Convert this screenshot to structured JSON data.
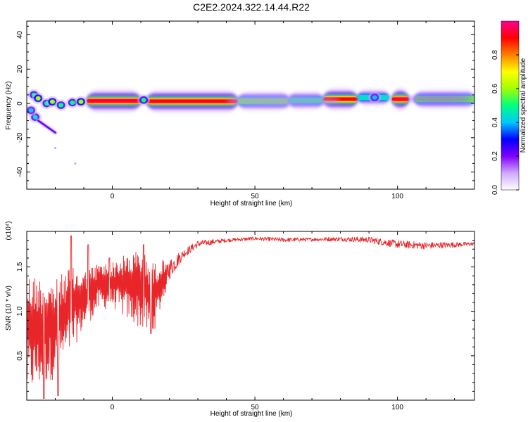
{
  "title": "C2E2.2024.322.14.44.R22",
  "chart_data": [
    {
      "type": "heatmap",
      "xlabel": "Height of straight line (km)",
      "ylabel": "Frequency (Hz)",
      "xlim": [
        -30,
        127
      ],
      "ylim": [
        -50,
        48
      ],
      "x_ticks": [
        0,
        50,
        100
      ],
      "y_ticks": [
        -40,
        -20,
        0,
        20,
        40
      ],
      "colorbar": {
        "label": "Normalized spectral amplitude",
        "range": [
          0,
          1
        ],
        "ticks": [
          "0.0",
          "0.2",
          "0.4",
          "0.6",
          "0.8"
        ],
        "colors": [
          "#ffffff",
          "#cfa8ff",
          "#8000ff",
          "#0000ff",
          "#00c8ff",
          "#00ff80",
          "#a0ff00",
          "#ffff00",
          "#ff8000",
          "#ff0000",
          "#ff0090"
        ]
      },
      "ridge": {
        "segments": [
          {
            "x": [
              -9,
              10
            ],
            "freq": 1.5,
            "amplitude": 0.95
          },
          {
            "x": [
              12,
              44
            ],
            "freq": 1.3,
            "amplitude": 0.93
          },
          {
            "x": [
              44,
              62
            ],
            "freq": 1.4,
            "amplitude": 0.6
          },
          {
            "x": [
              62,
              74
            ],
            "freq": 1.8,
            "amplitude": 0.5
          },
          {
            "x": [
              74,
              86
            ],
            "freq": 2.5,
            "amplitude": 0.9
          },
          {
            "x": [
              86,
              97
            ],
            "freq": 3.5,
            "amplitude": 0.4
          },
          {
            "x": [
              98,
              104
            ],
            "freq": 2.5,
            "amplitude": 0.95
          },
          {
            "x": [
              106,
              127
            ],
            "freq": 2.5,
            "amplitude": 0.6
          }
        ],
        "blobs": [
          {
            "x": -27.5,
            "freq": 5,
            "amplitude": 0.5
          },
          {
            "x": -26,
            "freq": 3,
            "amplitude": 0.6
          },
          {
            "x": -23,
            "freq": 0,
            "amplitude": 0.5
          },
          {
            "x": -21,
            "freq": 1,
            "amplitude": 0.6
          },
          {
            "x": -18,
            "freq": -1,
            "amplitude": 0.5
          },
          {
            "x": -14,
            "freq": 0.5,
            "amplitude": 0.5
          },
          {
            "x": -11,
            "freq": 1,
            "amplitude": 0.6
          },
          {
            "x": -27,
            "freq": -8,
            "amplitude": 0.45
          },
          {
            "x": -28.5,
            "freq": -4,
            "amplitude": 0.4
          },
          {
            "x": 11,
            "freq": 2,
            "amplitude": 0.5
          },
          {
            "x": 92,
            "freq": 3.5,
            "amplitude": 0.4
          }
        ],
        "tail": {
          "x": [
            -26,
            -20
          ],
          "freq": [
            -10,
            -17
          ]
        },
        "dots": [
          {
            "x": -20,
            "freq": -26
          },
          {
            "x": -13,
            "freq": -35
          }
        ]
      }
    },
    {
      "type": "line",
      "xlabel": "Height of straight line (km)",
      "ylabel": "SNR (10 * v/v)",
      "y_multiplier": "(x10⁴)",
      "xlim": [
        -30,
        127
      ],
      "ylim": [
        0,
        1.9
      ],
      "x_ticks": [
        0,
        50,
        100
      ],
      "y_ticks": [
        "0.5",
        "1.0",
        "1.5"
      ],
      "color": "#e8262a",
      "envelope": {
        "x": [
          -30,
          -25,
          -20,
          -15,
          -10,
          -5,
          0,
          5,
          10,
          14,
          20,
          25,
          30,
          40,
          50,
          60,
          70,
          80,
          90,
          100,
          110,
          120,
          127
        ],
        "upper": [
          1.45,
          1.4,
          1.35,
          1.5,
          1.45,
          1.55,
          1.55,
          1.65,
          1.7,
          1.55,
          1.6,
          1.7,
          1.8,
          1.82,
          1.84,
          1.83,
          1.83,
          1.84,
          1.84,
          1.8,
          1.78,
          1.78,
          1.78
        ],
        "lower": [
          0.05,
          0.15,
          0.25,
          0.5,
          0.8,
          1.0,
          1.05,
          0.9,
          0.8,
          0.7,
          1.35,
          1.6,
          1.72,
          1.78,
          1.8,
          1.78,
          1.79,
          1.79,
          1.77,
          1.71,
          1.7,
          1.72,
          1.74
        ]
      },
      "peaks": [
        {
          "x": -14.5,
          "y": 1.85
        },
        {
          "x": -8.5,
          "y": 1.75
        },
        {
          "x": -1,
          "y": 1.6
        },
        {
          "x": 11,
          "y": 1.75
        }
      ],
      "dips": [
        {
          "x": -19,
          "y": 0.05
        },
        {
          "x": -24,
          "y": 0.02
        },
        {
          "x": 13.5,
          "y": 0.75
        }
      ]
    }
  ]
}
